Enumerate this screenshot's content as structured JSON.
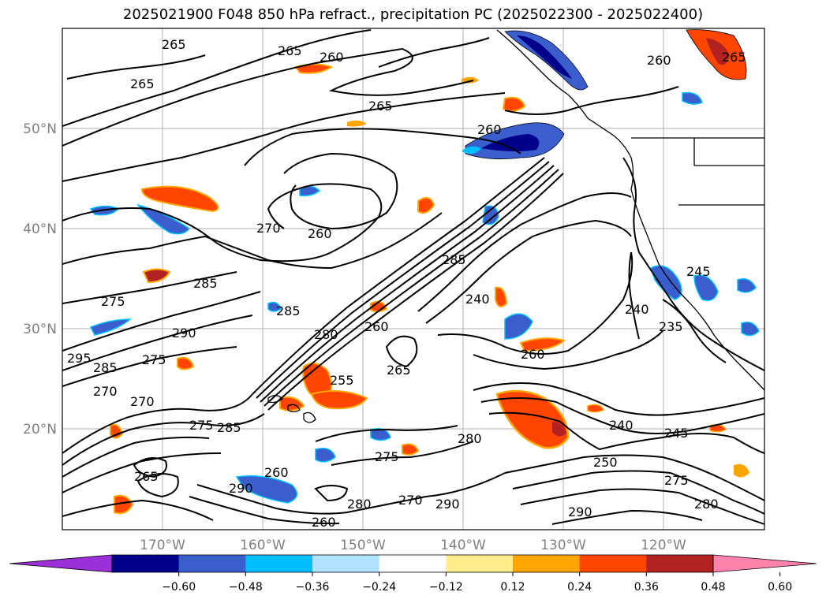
{
  "title": "2025021900 F048 850 hPa refract., precipitation PC (2025022300 - 2025022400)",
  "lat_labels": [
    "50°N",
    "40°N",
    "30°N",
    "20°N"
  ],
  "lon_labels": [
    "170°W",
    "160°W",
    "150°W",
    "140°W",
    "130°W",
    "120°W"
  ],
  "colorbar": {
    "ticks": [
      "−0.60",
      "−0.48",
      "−0.36",
      "−0.24",
      "−0.12",
      "0.12",
      "0.24",
      "0.36",
      "0.48",
      "0.60"
    ],
    "colors": [
      "#9b30d9",
      "#00008b",
      "#3a5fcd",
      "#00bfff",
      "#b0e2ff",
      "#ffffff",
      "#ffec8b",
      "#ffa500",
      "#ff4500",
      "#b22222",
      "#ff82ab"
    ]
  },
  "contour_labels": [
    "265",
    "265",
    "265",
    "260",
    "265",
    "260",
    "265",
    "260",
    "260",
    "270",
    "285",
    "275",
    "285",
    "240",
    "240",
    "235",
    "285",
    "280",
    "260",
    "260",
    "255",
    "265",
    "295",
    "290",
    "285",
    "275",
    "270",
    "270",
    "275",
    "285",
    "280",
    "240",
    "245",
    "250",
    "275",
    "280",
    "290",
    "270",
    "290",
    "260",
    "280",
    "275",
    "260",
    "290",
    "245",
    "265"
  ],
  "precip_colors": {
    "neg_strong": "#00008b",
    "neg_mid": "#3a5fcd",
    "neg_weak": "#00bfff",
    "pos_weak": "#ffa500",
    "pos_mid": "#ff4500",
    "pos_strong": "#b22222"
  }
}
